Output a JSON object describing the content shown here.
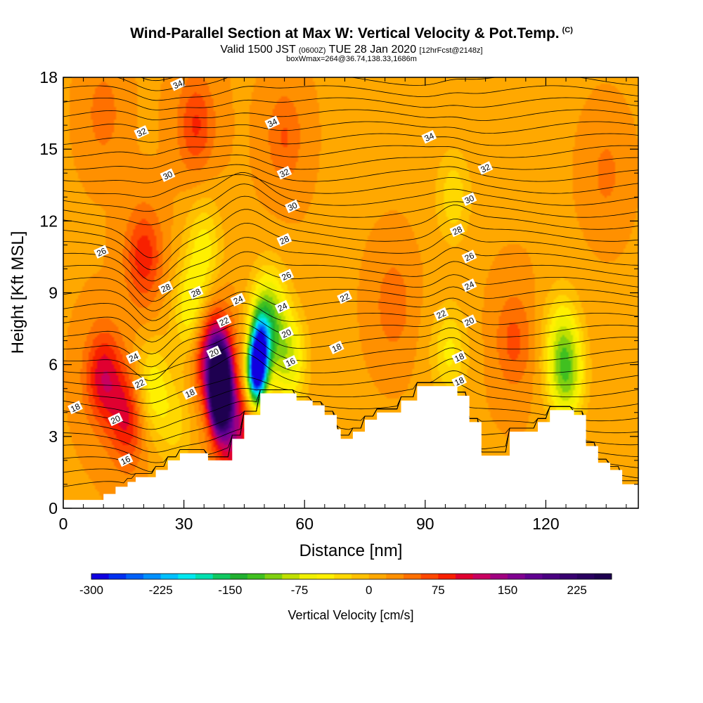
{
  "header": {
    "title": "Wind-Parallel Section at Max W: Vertical Velocity & Pot.Temp.",
    "copyright": "(C)",
    "valid_prefix": "Valid 1500 JST",
    "valid_utc": "(0600Z)",
    "valid_date": "TUE 28 Jan 2020",
    "forecast": "[12hrFcst@2148z]",
    "box_info": "boxWmax=264@36.74,138.33,1686m"
  },
  "chart_data": {
    "type": "heatmap",
    "title": "Wind-Parallel Section at Max W: Vertical Velocity & Pot.Temp.",
    "xlabel": "Distance [nm]",
    "ylabel": "Height [Kft MSL]",
    "xlim": [
      0,
      143
    ],
    "ylim": [
      0,
      18
    ],
    "x_ticks": [
      0,
      30,
      60,
      90,
      120
    ],
    "y_ticks": [
      0,
      3,
      6,
      9,
      12,
      15,
      18
    ],
    "colorbar": {
      "label": "Vertical Velocity [cm/s]",
      "ticks": [
        -300,
        -225,
        -150,
        -75,
        0,
        75,
        150,
        225
      ],
      "min": -300,
      "max": 262.5,
      "step": 18.75,
      "colors": [
        "#1000e0",
        "#0030f0",
        "#0060f8",
        "#0090ff",
        "#00c0ff",
        "#00e8f0",
        "#00e0b0",
        "#10c860",
        "#20b030",
        "#40c020",
        "#80d010",
        "#c0e000",
        "#f0f000",
        "#fff000",
        "#ffd800",
        "#ffc000",
        "#ffa800",
        "#ff9000",
        "#ff7000",
        "#ff4800",
        "#f82000",
        "#e00030",
        "#c80060",
        "#a00080",
        "#800090",
        "#600090",
        "#4a0080",
        "#380070",
        "#2a0060",
        "#1e0050"
      ]
    },
    "terrain": [
      [
        0,
        0.35
      ],
      [
        10,
        0.35
      ],
      [
        10,
        0.6
      ],
      [
        13,
        0.6
      ],
      [
        13,
        0.9
      ],
      [
        16,
        0.9
      ],
      [
        16,
        1.1
      ],
      [
        18,
        1.1
      ],
      [
        18,
        1.3
      ],
      [
        23,
        1.3
      ],
      [
        23,
        1.6
      ],
      [
        26,
        1.6
      ],
      [
        26,
        2.0
      ],
      [
        29,
        2.0
      ],
      [
        29,
        2.3
      ],
      [
        36,
        2.3
      ],
      [
        36,
        2.0
      ],
      [
        42,
        2.0
      ],
      [
        42,
        2.9
      ],
      [
        45,
        2.9
      ],
      [
        45,
        3.9
      ],
      [
        49,
        3.9
      ],
      [
        49,
        4.8
      ],
      [
        58,
        4.8
      ],
      [
        58,
        4.5
      ],
      [
        62,
        4.5
      ],
      [
        62,
        4.3
      ],
      [
        65,
        4.3
      ],
      [
        65,
        3.9
      ],
      [
        68,
        3.9
      ],
      [
        68,
        3.3
      ],
      [
        69,
        3.3
      ],
      [
        69,
        2.9
      ],
      [
        72,
        2.9
      ],
      [
        72,
        3.2
      ],
      [
        75,
        3.2
      ],
      [
        75,
        3.7
      ],
      [
        78,
        3.7
      ],
      [
        78,
        4.0
      ],
      [
        84,
        4.0
      ],
      [
        84,
        4.5
      ],
      [
        88,
        4.5
      ],
      [
        88,
        5.1
      ],
      [
        98,
        5.1
      ],
      [
        98,
        4.7
      ],
      [
        101,
        4.7
      ],
      [
        101,
        3.6
      ],
      [
        104,
        3.6
      ],
      [
        104,
        2.2
      ],
      [
        111,
        2.2
      ],
      [
        111,
        3.2
      ],
      [
        118,
        3.2
      ],
      [
        118,
        3.6
      ],
      [
        121,
        3.6
      ],
      [
        121,
        4.1
      ],
      [
        127,
        4.1
      ],
      [
        127,
        3.9
      ],
      [
        130,
        3.9
      ],
      [
        130,
        2.6
      ],
      [
        133,
        2.6
      ],
      [
        133,
        1.9
      ],
      [
        136,
        1.9
      ],
      [
        136,
        1.6
      ],
      [
        139,
        1.6
      ],
      [
        139,
        1.0
      ],
      [
        143,
        1.0
      ]
    ],
    "vertical_velocity_features": [
      {
        "x": 39,
        "y": 4.6,
        "value": 262
      },
      {
        "x": 39,
        "y": 5.6,
        "value": 210
      },
      {
        "x": 37,
        "y": 6.5,
        "value": 140
      },
      {
        "x": 42,
        "y": 3.4,
        "value": 120
      },
      {
        "x": 10,
        "y": 5.5,
        "value": 90
      },
      {
        "x": 16,
        "y": 3.8,
        "value": 80
      },
      {
        "x": 20,
        "y": 10.5,
        "value": 70
      },
      {
        "x": 33,
        "y": 16.0,
        "value": 60
      },
      {
        "x": 55,
        "y": 15.5,
        "value": 40
      },
      {
        "x": 48,
        "y": 5.6,
        "value": -300
      },
      {
        "x": 49,
        "y": 6.8,
        "value": -200
      },
      {
        "x": 51,
        "y": 8.0,
        "value": -120
      },
      {
        "x": 56,
        "y": 6.2,
        "value": -90
      },
      {
        "x": 32,
        "y": 8.2,
        "value": -80
      },
      {
        "x": 35,
        "y": 11.0,
        "value": -60
      },
      {
        "x": 22,
        "y": 5.0,
        "value": -70
      },
      {
        "x": 28,
        "y": 3.5,
        "value": -40
      },
      {
        "x": 96,
        "y": 6.5,
        "value": -60
      },
      {
        "x": 97,
        "y": 13.0,
        "value": -50
      },
      {
        "x": 125,
        "y": 5.5,
        "value": -110
      },
      {
        "x": 124,
        "y": 7.3,
        "value": -60
      },
      {
        "x": 10,
        "y": 16.5,
        "value": 30
      },
      {
        "x": 135,
        "y": 14.0,
        "value": 25
      },
      {
        "x": 112,
        "y": 7.0,
        "value": 45
      },
      {
        "x": 82,
        "y": 8.5,
        "value": 35
      }
    ],
    "potential_temperature_contours": {
      "interval": 0.5,
      "labels": [
        {
          "text": "34",
          "x": 28.5,
          "y": 17.7
        },
        {
          "text": "34",
          "x": 52,
          "y": 16.1
        },
        {
          "text": "34",
          "x": 91,
          "y": 15.5
        },
        {
          "text": "32",
          "x": 19.5,
          "y": 15.7
        },
        {
          "text": "32",
          "x": 55,
          "y": 14.0
        },
        {
          "text": "32",
          "x": 105,
          "y": 14.2
        },
        {
          "text": "30",
          "x": 26,
          "y": 13.9
        },
        {
          "text": "30",
          "x": 57,
          "y": 12.6
        },
        {
          "text": "30",
          "x": 101,
          "y": 12.9
        },
        {
          "text": "28",
          "x": 55,
          "y": 11.2
        },
        {
          "text": "28",
          "x": 98,
          "y": 11.6
        },
        {
          "text": "28",
          "x": 25.5,
          "y": 9.2
        },
        {
          "text": "28",
          "x": 33,
          "y": 9.0
        },
        {
          "text": "26",
          "x": 9.5,
          "y": 10.7
        },
        {
          "text": "26",
          "x": 55.5,
          "y": 9.7
        },
        {
          "text": "26",
          "x": 101,
          "y": 10.5
        },
        {
          "text": "24",
          "x": 17.5,
          "y": 6.3
        },
        {
          "text": "24",
          "x": 43.5,
          "y": 8.7
        },
        {
          "text": "24",
          "x": 54.5,
          "y": 8.4
        },
        {
          "text": "24",
          "x": 101,
          "y": 9.3
        },
        {
          "text": "22",
          "x": 19,
          "y": 5.2
        },
        {
          "text": "22",
          "x": 40,
          "y": 7.8
        },
        {
          "text": "22",
          "x": 70,
          "y": 8.8
        },
        {
          "text": "22",
          "x": 94,
          "y": 8.1
        },
        {
          "text": "20",
          "x": 37.5,
          "y": 6.5
        },
        {
          "text": "20",
          "x": 55.5,
          "y": 7.3
        },
        {
          "text": "20",
          "x": 101,
          "y": 7.8
        },
        {
          "text": "20",
          "x": 13,
          "y": 3.7
        },
        {
          "text": "18",
          "x": 3,
          "y": 4.2
        },
        {
          "text": "18",
          "x": 31.5,
          "y": 4.8
        },
        {
          "text": "18",
          "x": 68,
          "y": 6.7
        },
        {
          "text": "18",
          "x": 98.5,
          "y": 6.3
        },
        {
          "text": "18",
          "x": 98.5,
          "y": 5.3
        },
        {
          "text": "16",
          "x": 56.5,
          "y": 6.1
        },
        {
          "text": "16",
          "x": 15.5,
          "y": 2.0
        }
      ]
    }
  }
}
